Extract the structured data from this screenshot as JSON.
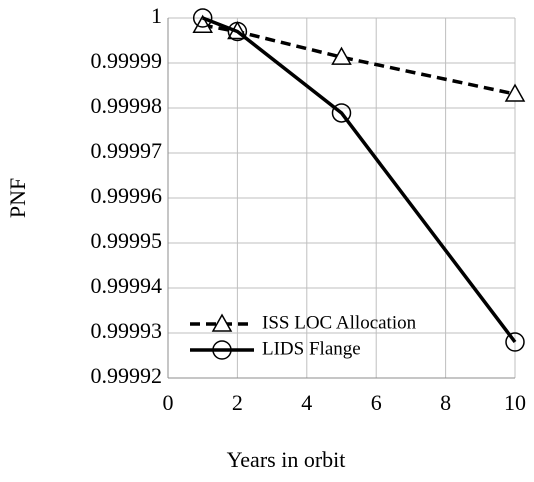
{
  "chart_data": {
    "type": "line",
    "xlabel": "Years in orbit",
    "ylabel": "PNF",
    "xlim": [
      0,
      10
    ],
    "xticks": [
      0,
      2,
      4,
      6,
      8,
      10
    ],
    "ylim": [
      0.99992,
      1
    ],
    "yticks": [
      0.99992,
      0.99993,
      0.99994,
      0.99995,
      0.99996,
      0.99997,
      0.99998,
      0.99999,
      1
    ],
    "grid": true,
    "legend": "lower left",
    "series": [
      {
        "name": "ISS LOC Allocation",
        "color": "#000000",
        "dash": true,
        "marker": "triangle",
        "x": [
          1,
          2,
          5,
          10
        ],
        "values": [
          0.9999984,
          0.999997,
          0.9999913,
          0.9999831
        ]
      },
      {
        "name": "LIDS Flange",
        "color": "#000000",
        "dash": false,
        "marker": "circle",
        "x": [
          1,
          2,
          5,
          10
        ],
        "values": [
          1,
          0.999997,
          0.9999789,
          0.999928
        ]
      }
    ]
  }
}
